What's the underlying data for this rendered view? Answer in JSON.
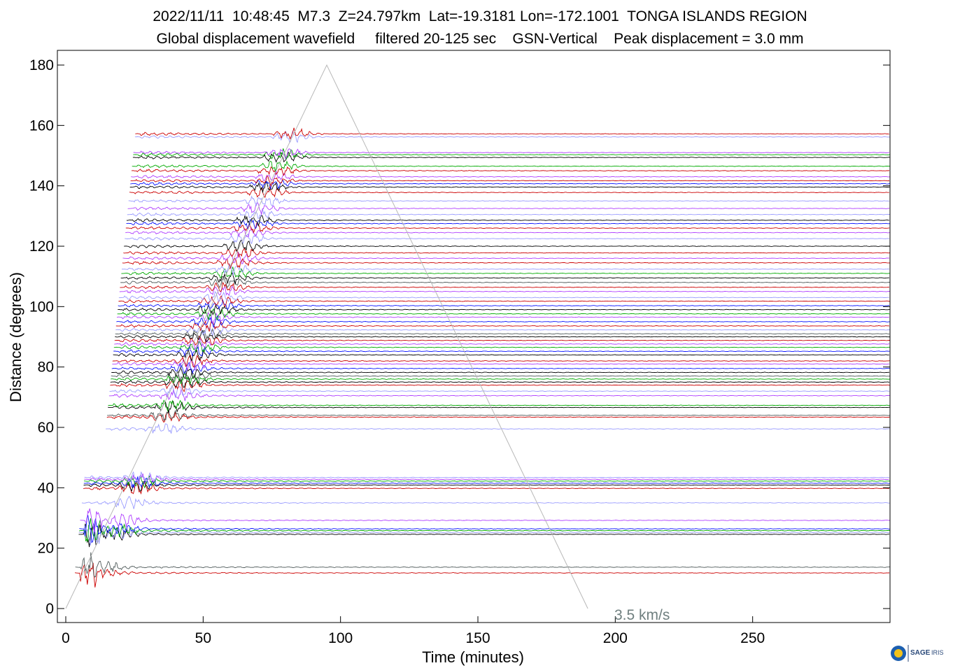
{
  "header": {
    "line1": "2022/11/11  10:48:45  M7.3  Z=24.797km  Lat=-19.3181 Lon=-172.1001  TONGA ISLANDS REGION",
    "line2": "Global displacement wavefield     filtered 20-125 sec    GSN-Vertical    Peak displacement = 3.0 mm"
  },
  "logo": {
    "text": "SAGE",
    "sub": "IRIS"
  },
  "colors": {
    "red": "#cc0000",
    "black": "#000000",
    "blue": "#0a14ff",
    "green": "#00aa00",
    "purple": "#b040ff",
    "lavender": "#9a9cff",
    "gray": "#4f5a5a",
    "guide": "#b8b8b8"
  },
  "chart_data": {
    "type": "line",
    "title": "2022/11/11  10:48:45  M7.3  Z=24.797km  Lat=-19.3181 Lon=-172.1001  TONGA ISLANDS REGION",
    "xlabel": "Time (minutes)",
    "ylabel": "Distance (degrees)",
    "xlim": [
      -3,
      300
    ],
    "ylim": [
      -5,
      185
    ],
    "x_ticks": [
      0,
      50,
      100,
      150,
      200,
      250
    ],
    "y_ticks": [
      0,
      20,
      40,
      60,
      80,
      100,
      120,
      140,
      160,
      180
    ],
    "grid": false,
    "annotation": "3.5 km/s",
    "guide_line": [
      [
        0,
        0
      ],
      [
        95,
        180
      ],
      [
        190,
        0
      ]
    ],
    "traces": [
      {
        "distance": 11.8,
        "color": "red"
      },
      {
        "distance": 13.7,
        "color": "gray"
      },
      {
        "distance": 24.6,
        "color": "black"
      },
      {
        "distance": 25.2,
        "color": "lavender"
      },
      {
        "distance": 25.8,
        "color": "green"
      },
      {
        "distance": 26.4,
        "color": "blue"
      },
      {
        "distance": 29.2,
        "color": "purple"
      },
      {
        "distance": 35.0,
        "color": "lavender"
      },
      {
        "distance": 39.8,
        "color": "red"
      },
      {
        "distance": 40.9,
        "color": "black"
      },
      {
        "distance": 41.5,
        "color": "blue"
      },
      {
        "distance": 42.2,
        "color": "green"
      },
      {
        "distance": 42.8,
        "color": "purple"
      },
      {
        "distance": 43.4,
        "color": "lavender"
      },
      {
        "distance": 59.5,
        "color": "lavender"
      },
      {
        "distance": 63.4,
        "color": "red"
      },
      {
        "distance": 64.0,
        "color": "gray"
      },
      {
        "distance": 66.6,
        "color": "black"
      },
      {
        "distance": 67.3,
        "color": "green"
      },
      {
        "distance": 70.5,
        "color": "purple"
      },
      {
        "distance": 72.0,
        "color": "lavender"
      },
      {
        "distance": 74.0,
        "color": "red"
      },
      {
        "distance": 75.0,
        "color": "black"
      },
      {
        "distance": 76.0,
        "color": "green"
      },
      {
        "distance": 77.0,
        "color": "gray"
      },
      {
        "distance": 78.2,
        "color": "black"
      },
      {
        "distance": 79.5,
        "color": "blue"
      },
      {
        "distance": 81.0,
        "color": "purple"
      },
      {
        "distance": 82.0,
        "color": "red"
      },
      {
        "distance": 84.0,
        "color": "black"
      },
      {
        "distance": 85.2,
        "color": "blue"
      },
      {
        "distance": 86.5,
        "color": "green"
      },
      {
        "distance": 87.6,
        "color": "purple"
      },
      {
        "distance": 88.8,
        "color": "red"
      },
      {
        "distance": 90.0,
        "color": "black"
      },
      {
        "distance": 91.0,
        "color": "gray"
      },
      {
        "distance": 92.3,
        "color": "lavender"
      },
      {
        "distance": 93.6,
        "color": "red"
      },
      {
        "distance": 95.0,
        "color": "blue"
      },
      {
        "distance": 96.5,
        "color": "purple"
      },
      {
        "distance": 97.6,
        "color": "green"
      },
      {
        "distance": 99.0,
        "color": "black"
      },
      {
        "distance": 100.3,
        "color": "blue"
      },
      {
        "distance": 101.8,
        "color": "red"
      },
      {
        "distance": 103.0,
        "color": "lavender"
      },
      {
        "distance": 105.0,
        "color": "purple"
      },
      {
        "distance": 106.4,
        "color": "red"
      },
      {
        "distance": 108.0,
        "color": "gray"
      },
      {
        "distance": 109.5,
        "color": "black"
      },
      {
        "distance": 111.0,
        "color": "green"
      },
      {
        "distance": 112.4,
        "color": "lavender"
      },
      {
        "distance": 114.5,
        "color": "red"
      },
      {
        "distance": 116.0,
        "color": "purple"
      },
      {
        "distance": 117.8,
        "color": "red"
      },
      {
        "distance": 120.0,
        "color": "black"
      },
      {
        "distance": 122.5,
        "color": "lavender"
      },
      {
        "distance": 124.5,
        "color": "purple"
      },
      {
        "distance": 126.0,
        "color": "red"
      },
      {
        "distance": 127.5,
        "color": "blue"
      },
      {
        "distance": 128.6,
        "color": "black"
      },
      {
        "distance": 130.5,
        "color": "lavender"
      },
      {
        "distance": 132.5,
        "color": "purple"
      },
      {
        "distance": 135.0,
        "color": "lavender"
      },
      {
        "distance": 137.8,
        "color": "red"
      },
      {
        "distance": 139.6,
        "color": "black"
      },
      {
        "distance": 140.7,
        "color": "blue"
      },
      {
        "distance": 141.7,
        "color": "red"
      },
      {
        "distance": 143.0,
        "color": "purple"
      },
      {
        "distance": 145.0,
        "color": "red"
      },
      {
        "distance": 146.5,
        "color": "green"
      },
      {
        "distance": 149.4,
        "color": "black"
      },
      {
        "distance": 150.3,
        "color": "green"
      },
      {
        "distance": 151.0,
        "color": "purple"
      },
      {
        "distance": 156.2,
        "color": "lavender"
      },
      {
        "distance": 157.2,
        "color": "red"
      }
    ]
  }
}
